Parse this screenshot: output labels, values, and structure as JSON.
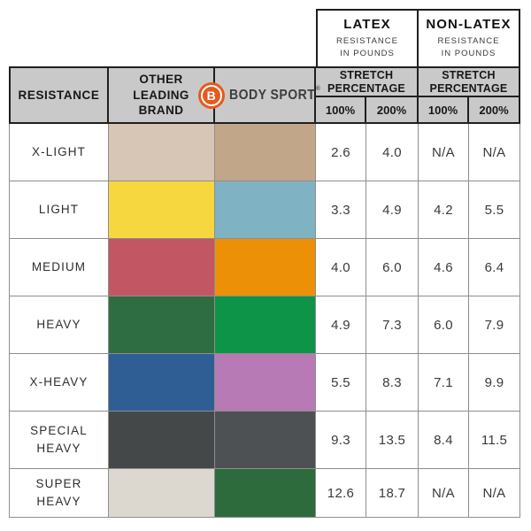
{
  "header": {
    "latex": {
      "title": "LATEX",
      "subtitle": "RESISTANCE\nIN POUNDS"
    },
    "non_latex": {
      "title": "NON-LATEX",
      "subtitle": "RESISTANCE\nIN POUNDS"
    },
    "resistance_label": "RESISTANCE",
    "other_brand_label": "OTHER\nLEADING\nBRAND",
    "brand": {
      "logo_letter": "B",
      "name": "BODY SPORT",
      "trademark": "®"
    },
    "latex_stretch": "STRETCH\nPERCENTAGE",
    "non_latex_stretch": "STRETCH\nPERCENTAGE",
    "latex_100": "100%",
    "latex_200": "200%",
    "non_latex_100": "100%",
    "non_latex_200": "200%"
  },
  "colors": {
    "header_bg": "#c9c9c9",
    "logo_orange": "#e55a1e",
    "grid_line": "#8e8e8e",
    "header_line": "#1f1f1f"
  },
  "chart_data": {
    "type": "table",
    "title": "Resistance band comparison: Other Leading Brand vs Body Sport, latex and non-latex resistance in pounds at 100% and 200% stretch",
    "columns": [
      "RESISTANCE",
      "OTHER LEADING BRAND",
      "BODY SPORT",
      "LATEX 100%",
      "LATEX 200%",
      "NON-LATEX 100%",
      "NON-LATEX 200%"
    ],
    "rows": [
      {
        "label": "X-LIGHT",
        "other_color": "#d7c6b6",
        "body_sport_color": "#c2a689",
        "latex_100": "2.6",
        "latex_200": "4.0",
        "non_latex_100": "N/A",
        "non_latex_200": "N/A"
      },
      {
        "label": "LIGHT",
        "other_color": "#f6d73f",
        "body_sport_color": "#7fb3c3",
        "latex_100": "3.3",
        "latex_200": "4.9",
        "non_latex_100": "4.2",
        "non_latex_200": "5.5"
      },
      {
        "label": "MEDIUM",
        "other_color": "#c25663",
        "body_sport_color": "#ec9007",
        "latex_100": "4.0",
        "latex_200": "6.0",
        "non_latex_100": "4.6",
        "non_latex_200": "6.4"
      },
      {
        "label": "HEAVY",
        "other_color": "#2e6c41",
        "body_sport_color": "#0e9448",
        "latex_100": "4.9",
        "latex_200": "7.3",
        "non_latex_100": "6.0",
        "non_latex_200": "7.9"
      },
      {
        "label": "X-HEAVY",
        "other_color": "#2f5e94",
        "body_sport_color": "#b77ab5",
        "latex_100": "5.5",
        "latex_200": "8.3",
        "non_latex_100": "7.1",
        "non_latex_200": "9.9"
      },
      {
        "label": "SPECIAL\nHEAVY",
        "other_color": "#454849",
        "body_sport_color": "#4e5154",
        "latex_100": "9.3",
        "latex_200": "13.5",
        "non_latex_100": "8.4",
        "non_latex_200": "11.5"
      },
      {
        "label": "SUPER\nHEAVY",
        "other_color": "#dcd8cf",
        "body_sport_color": "#2d6b3c",
        "latex_100": "12.6",
        "latex_200": "18.7",
        "non_latex_100": "N/A",
        "non_latex_200": "N/A"
      }
    ]
  }
}
